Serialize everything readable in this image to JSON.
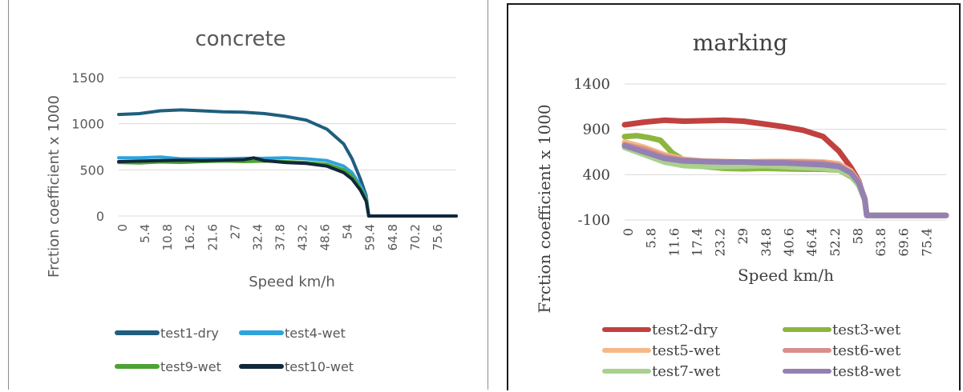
{
  "chart_data": [
    {
      "type": "line",
      "title": "concrete",
      "xlabel": "Speed km/h",
      "ylabel": "Frction coefficient x 1000",
      "ylim": [
        0,
        1500
      ],
      "yticks": [
        "0",
        "500",
        "1000",
        "1500"
      ],
      "xlim": [
        0,
        81
      ],
      "xticks": [
        "0",
        "5.4",
        "10.8",
        "16.2",
        "21.6",
        "27",
        "32.4",
        "37.8",
        "43.2",
        "48.6",
        "54",
        "59.4",
        "64.8",
        "70.2",
        "75.6"
      ],
      "grid": true,
      "legend_position": "bottom",
      "series": [
        {
          "name": "test1-dry",
          "color": "#1f5e7e",
          "x": [
            0,
            5,
            10,
            15,
            20,
            25,
            30,
            35,
            40,
            45,
            50,
            54,
            56,
            58,
            59.4,
            60,
            81
          ],
          "y": [
            1100,
            1110,
            1140,
            1150,
            1140,
            1130,
            1125,
            1110,
            1080,
            1040,
            940,
            780,
            620,
            400,
            220,
            0,
            0
          ]
        },
        {
          "name": "test4-wet",
          "color": "#2ea3dc",
          "x": [
            0,
            5,
            10,
            15,
            20,
            25,
            30,
            35,
            40,
            45,
            50,
            54,
            56,
            58,
            59.4,
            60,
            81
          ],
          "y": [
            630,
            630,
            640,
            620,
            620,
            620,
            625,
            625,
            630,
            620,
            600,
            540,
            470,
            330,
            200,
            0,
            0
          ]
        },
        {
          "name": "test9-wet",
          "color": "#4ca235",
          "x": [
            0,
            5,
            10,
            15,
            20,
            25,
            30,
            35,
            40,
            45,
            50,
            54,
            56,
            58,
            59.4,
            60,
            81
          ],
          "y": [
            580,
            575,
            585,
            580,
            590,
            595,
            590,
            595,
            590,
            580,
            560,
            500,
            430,
            300,
            180,
            0,
            0
          ]
        },
        {
          "name": "test10-wet",
          "color": "#10283a",
          "x": [
            0,
            5,
            10,
            15,
            20,
            25,
            30,
            32.4,
            35,
            40,
            45,
            50,
            54,
            56,
            58,
            59.4,
            60,
            81
          ],
          "y": [
            590,
            595,
            600,
            605,
            600,
            605,
            610,
            630,
            600,
            580,
            570,
            540,
            470,
            400,
            280,
            160,
            0,
            0
          ]
        }
      ]
    },
    {
      "type": "line",
      "title": "marking",
      "xlabel": "Speed km/h",
      "ylabel": "Frction coefficient x 1000",
      "ylim": [
        -100,
        1400
      ],
      "yticks": [
        "-100",
        "400",
        "900",
        "1400"
      ],
      "xlim": [
        0,
        81
      ],
      "xticks": [
        "0",
        "5.8",
        "11.6",
        "17.4",
        "23.2",
        "29",
        "34.8",
        "40.6",
        "46.4",
        "52.2",
        "58",
        "63.8",
        "69.6",
        "75.4"
      ],
      "grid": true,
      "legend_position": "bottom",
      "series": [
        {
          "name": "test2-dry",
          "color": "#c0413f",
          "x": [
            0,
            5,
            10,
            15,
            20,
            25,
            30,
            35,
            40,
            45,
            50,
            54,
            57,
            59,
            60.5,
            61,
            81
          ],
          "y": [
            950,
            980,
            1000,
            990,
            995,
            1000,
            990,
            960,
            930,
            890,
            820,
            660,
            480,
            330,
            120,
            -50,
            -50
          ]
        },
        {
          "name": "test3-wet",
          "color": "#8cb63e",
          "x": [
            0,
            3,
            6,
            9,
            12,
            15,
            20,
            25,
            30,
            35,
            40,
            45,
            50,
            54,
            57,
            59,
            60.5,
            61,
            81
          ],
          "y": [
            820,
            830,
            810,
            780,
            640,
            560,
            490,
            470,
            465,
            470,
            465,
            460,
            460,
            450,
            380,
            290,
            130,
            -50,
            -50
          ]
        },
        {
          "name": "test5-wet",
          "color": "#f5b887",
          "x": [
            0,
            5,
            10,
            15,
            20,
            25,
            30,
            35,
            40,
            45,
            50,
            54,
            57,
            59,
            60.5,
            61,
            81
          ],
          "y": [
            760,
            700,
            620,
            570,
            550,
            545,
            540,
            545,
            545,
            545,
            540,
            520,
            440,
            320,
            140,
            -50,
            -50
          ]
        },
        {
          "name": "test6-wet",
          "color": "#d88f8b",
          "x": [
            0,
            5,
            10,
            15,
            20,
            25,
            30,
            35,
            40,
            45,
            50,
            54,
            57,
            59,
            60.5,
            61,
            81
          ],
          "y": [
            730,
            680,
            600,
            560,
            545,
            540,
            535,
            540,
            540,
            535,
            530,
            500,
            420,
            300,
            130,
            -50,
            -50
          ]
        },
        {
          "name": "test7-wet",
          "color": "#a9d18e",
          "x": [
            0,
            5,
            10,
            15,
            20,
            25,
            30,
            35,
            40,
            45,
            50,
            54,
            57,
            59,
            60.5,
            61,
            81
          ],
          "y": [
            700,
            620,
            540,
            500,
            490,
            490,
            495,
            500,
            490,
            480,
            470,
            450,
            390,
            280,
            120,
            -50,
            -50
          ]
        },
        {
          "name": "test8-wet",
          "color": "#9580b3",
          "x": [
            0,
            5,
            10,
            15,
            20,
            25,
            30,
            35,
            40,
            45,
            50,
            54,
            57,
            59,
            60.5,
            61,
            81
          ],
          "y": [
            720,
            650,
            580,
            550,
            545,
            540,
            540,
            530,
            530,
            520,
            510,
            490,
            420,
            310,
            130,
            -50,
            -50
          ]
        }
      ]
    }
  ]
}
